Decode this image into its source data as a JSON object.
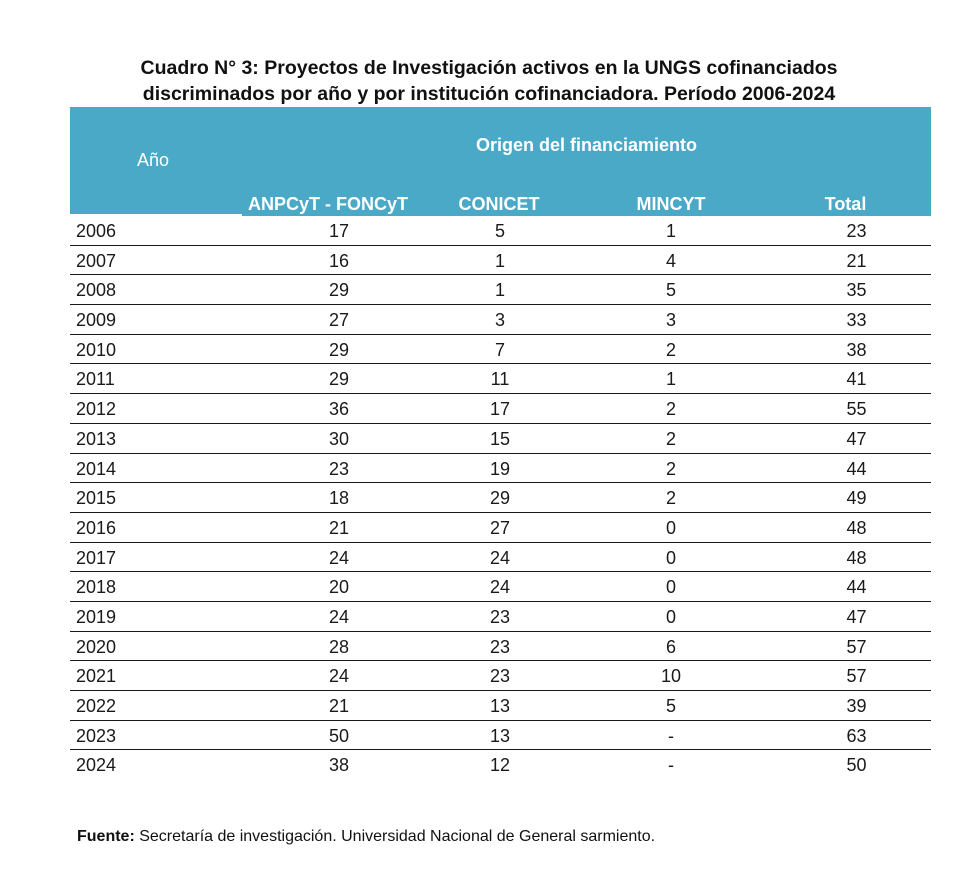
{
  "title": {
    "line1": "Cuadro N° 3: Proyectos de Investigación activos en la UNGS cofinanciados",
    "line2": "discriminados por año y por institución cofinanciadora. Período 2006-2024"
  },
  "table": {
    "year_header": "Año",
    "group_header": "Origen del financiamiento",
    "columns": [
      "ANPCyT - FONCyT",
      "CONICET",
      "MINCYT",
      "Total"
    ],
    "rows": [
      {
        "year": "2006",
        "anpcyt": "17",
        "conicet": "5",
        "mincyt": "1",
        "total": "23"
      },
      {
        "year": "2007",
        "anpcyt": "16",
        "conicet": "1",
        "mincyt": "4",
        "total": "21"
      },
      {
        "year": "2008",
        "anpcyt": "29",
        "conicet": "1",
        "mincyt": "5",
        "total": "35"
      },
      {
        "year": "2009",
        "anpcyt": "27",
        "conicet": "3",
        "mincyt": "3",
        "total": "33"
      },
      {
        "year": "2010",
        "anpcyt": "29",
        "conicet": "7",
        "mincyt": "2",
        "total": "38"
      },
      {
        "year": "2011",
        "anpcyt": "29",
        "conicet": "11",
        "mincyt": "1",
        "total": "41"
      },
      {
        "year": "2012",
        "anpcyt": "36",
        "conicet": "17",
        "mincyt": "2",
        "total": "55"
      },
      {
        "year": "2013",
        "anpcyt": "30",
        "conicet": "15",
        "mincyt": "2",
        "total": "47"
      },
      {
        "year": "2014",
        "anpcyt": "23",
        "conicet": "19",
        "mincyt": "2",
        "total": "44"
      },
      {
        "year": "2015",
        "anpcyt": "18",
        "conicet": "29",
        "mincyt": "2",
        "total": "49"
      },
      {
        "year": "2016",
        "anpcyt": "21",
        "conicet": "27",
        "mincyt": "0",
        "total": "48"
      },
      {
        "year": "2017",
        "anpcyt": "24",
        "conicet": "24",
        "mincyt": "0",
        "total": "48"
      },
      {
        "year": "2018",
        "anpcyt": "20",
        "conicet": "24",
        "mincyt": "0",
        "total": "44"
      },
      {
        "year": "2019",
        "anpcyt": "24",
        "conicet": "23",
        "mincyt": "0",
        "total": "47"
      },
      {
        "year": "2020",
        "anpcyt": "28",
        "conicet": "23",
        "mincyt": "6",
        "total": "57"
      },
      {
        "year": "2021",
        "anpcyt": "24",
        "conicet": "23",
        "mincyt": "10",
        "total": "57"
      },
      {
        "year": "2022",
        "anpcyt": "21",
        "conicet": "13",
        "mincyt": "5",
        "total": "39"
      },
      {
        "year": "2023",
        "anpcyt": "50",
        "conicet": "13",
        "mincyt": "-",
        "total": "63"
      },
      {
        "year": "2024",
        "anpcyt": "38",
        "conicet": "12",
        "mincyt": "-",
        "total": "50"
      }
    ]
  },
  "source": {
    "label": "Fuente:",
    "text": " Secretaría de investigación. Universidad Nacional de General sarmiento."
  },
  "colors": {
    "header_bg": "#4aa9c7",
    "header_text": "#ffffff"
  }
}
